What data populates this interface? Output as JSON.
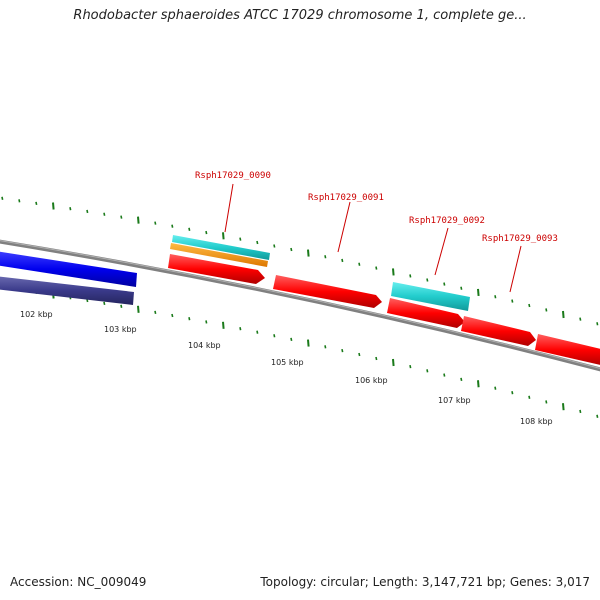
{
  "header": {
    "title": "Rhodobacter sphaeroides ATCC 17029 chromosome 1, complete ge..."
  },
  "footer": {
    "accession": "Accession: NC_009049",
    "summary": "Topology: circular; Length: 3,147,721 bp; Genes: 3,017"
  },
  "map": {
    "backbone_color": "#808080",
    "tick_color": "#1a7a1a",
    "kbp_labels": [
      "102 kbp",
      "103 kbp",
      "104 kbp",
      "105 kbp",
      "106 kbp",
      "107 kbp",
      "108 kbp"
    ],
    "gene_labels": [
      "Rsph17029_0090",
      "Rsph17029_0091",
      "Rsph17029_0092",
      "Rsph17029_0093"
    ],
    "feature_colors": {
      "gene_red": "#ff0000",
      "cds_blue": "#0000ee",
      "cds_navy": "#3a3a8a",
      "cyan": "#22cccc",
      "orange": "#ff9900"
    }
  }
}
